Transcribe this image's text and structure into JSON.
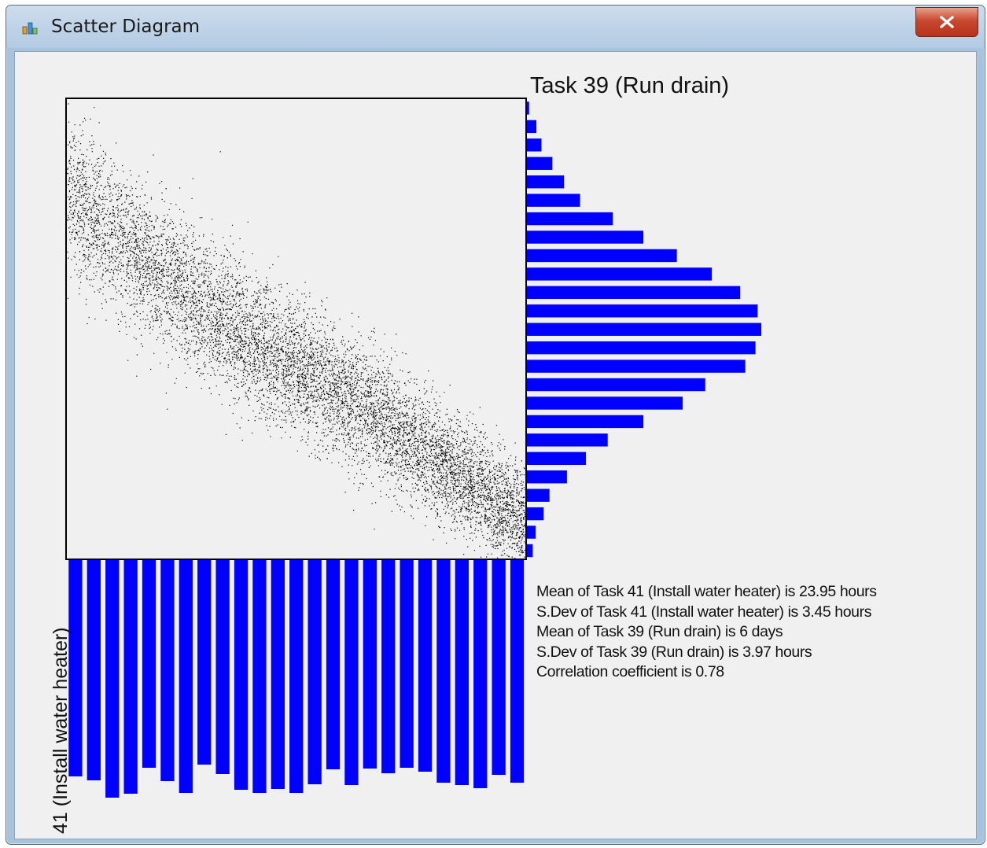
{
  "window": {
    "title": "Scatter Diagram",
    "icons": {
      "app": "chart-window-icon",
      "close": "close-icon"
    }
  },
  "chart_data": {
    "type": "scatter",
    "title": "Task 39 (Run drain)",
    "ylabel": "41 (Install water heater)",
    "colors": {
      "histogram": "#0000ff",
      "points": "#000000",
      "background": "#f0f0f0"
    },
    "scatter_trend": {
      "description_points": [
        [
          0.0,
          0.2
        ],
        [
          0.2,
          0.38
        ],
        [
          0.4,
          0.52
        ],
        [
          0.6,
          0.64
        ],
        [
          0.8,
          0.78
        ],
        [
          1.0,
          0.92
        ]
      ]
    },
    "right_histogram": {
      "orientation": "horizontal",
      "values": [
        3,
        13,
        20,
        35,
        51,
        73,
        118,
        160,
        206,
        254,
        293,
        317,
        322,
        314,
        300,
        245,
        214,
        160,
        111,
        81,
        55,
        31,
        23,
        12,
        8
      ]
    },
    "bottom_histogram": {
      "orientation": "vertical",
      "values": [
        275,
        280,
        302,
        297,
        264,
        281,
        296,
        260,
        272,
        292,
        296,
        291,
        296,
        285,
        266,
        286,
        265,
        271,
        264,
        269,
        283,
        286,
        290,
        273,
        283
      ]
    }
  },
  "stats": {
    "lines": [
      "Mean of Task 41 (Install water heater) is 23.95 hours",
      "S.Dev of Task 41 (Install water heater) is 3.45 hours",
      "Mean of Task 39 (Run drain) is 6 days",
      "S.Dev of Task 39 (Run drain) is 3.97 hours",
      "Correlation coefficient is 0.78"
    ]
  }
}
